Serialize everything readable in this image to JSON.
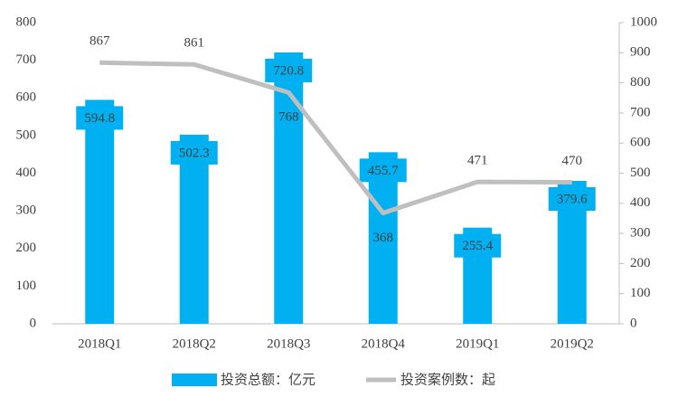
{
  "chart_data": {
    "type": "bar",
    "categories": [
      "2018Q1",
      "2018Q2",
      "2018Q3",
      "2018Q4",
      "2019Q1",
      "2019Q2"
    ],
    "series": [
      {
        "name": "投资总额：亿元",
        "type": "bar",
        "color": "#00b0f0",
        "values": [
          594.8,
          502.3,
          720.8,
          455.7,
          255.4,
          379.6
        ]
      },
      {
        "name": "投资案例数：起",
        "type": "line",
        "axis": "y2",
        "color": "#bfbfbf",
        "values": [
          867,
          861,
          768,
          368,
          471,
          470
        ]
      }
    ],
    "ylim": [
      0,
      800
    ],
    "yticks": [
      0,
      100,
      200,
      300,
      400,
      500,
      600,
      700,
      800
    ],
    "y2lim": [
      0,
      1000
    ],
    "y2ticks": [
      0,
      100,
      200,
      300,
      400,
      500,
      600,
      700,
      800,
      900,
      1000
    ],
    "grid": false,
    "legend": "bottom"
  }
}
